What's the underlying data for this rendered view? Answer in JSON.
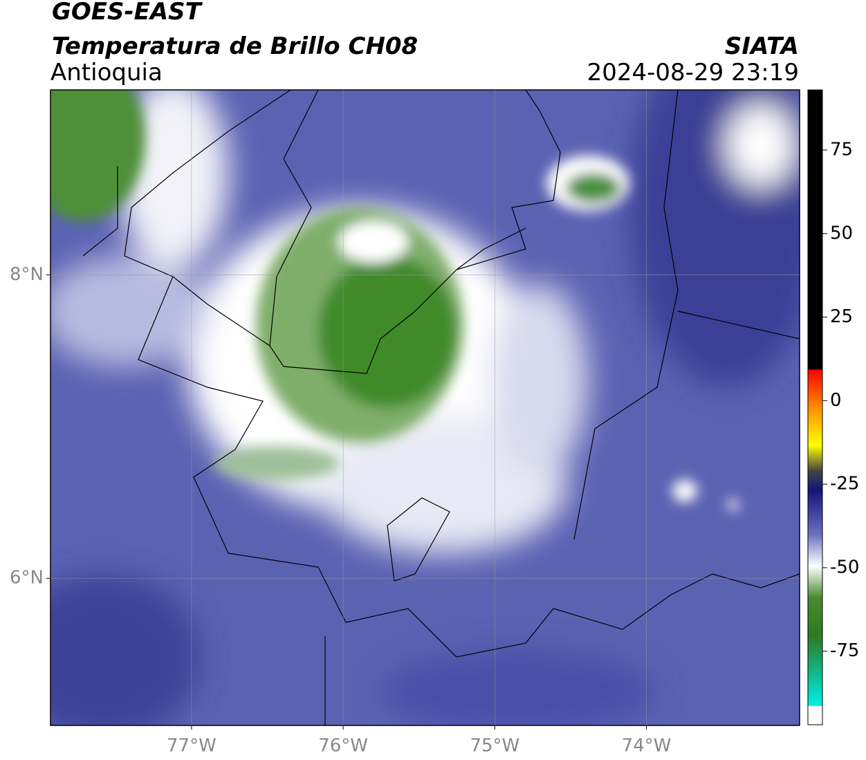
{
  "header": {
    "title": "GOES-EAST",
    "subtitle": "Temperatura de Brillo CH08",
    "region": "Antioquia",
    "source": "SIATA",
    "datetime": "2024-08-29 23:19"
  },
  "map": {
    "xlim": [
      -77.93,
      -72.99
    ],
    "ylim": [
      5.03,
      9.22
    ],
    "xticks": [
      {
        "value": -77,
        "label": "77°W"
      },
      {
        "value": -76,
        "label": "76°W"
      },
      {
        "value": -75,
        "label": "75°W"
      },
      {
        "value": -74,
        "label": "74°W"
      }
    ],
    "yticks": [
      {
        "value": 6,
        "label": "6°N"
      },
      {
        "value": 8,
        "label": "8°N"
      }
    ],
    "grid": true
  },
  "colorbar": {
    "lim": [
      -97,
      93
    ],
    "ticks": [
      75,
      50,
      25,
      0,
      -25,
      -50,
      -75
    ]
  }
}
